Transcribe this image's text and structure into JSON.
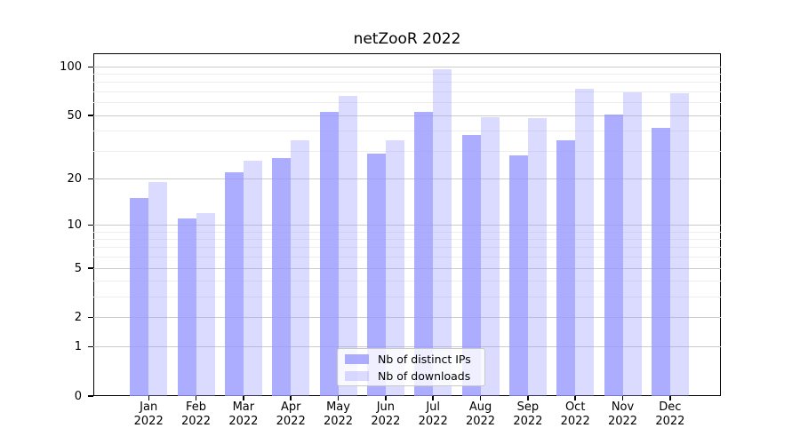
{
  "title": "netZooR 2022",
  "chart_data": {
    "type": "bar",
    "title": "netZooR 2022",
    "categories": [
      "Jan",
      "Feb",
      "Mar",
      "Apr",
      "May",
      "Jun",
      "Jul",
      "Aug",
      "Sep",
      "Oct",
      "Nov",
      "Dec"
    ],
    "year_label": "2022",
    "series": [
      {
        "name": "Nb of distinct IPs",
        "color": "#9999ff",
        "alpha": 0.8,
        "values": [
          15,
          11,
          22,
          27,
          53,
          29,
          53,
          38,
          28,
          35,
          51,
          42
        ]
      },
      {
        "name": "Nb of downloads",
        "color": "#9999ff",
        "alpha": 0.35,
        "values": [
          19,
          12,
          26,
          35,
          66,
          35,
          97,
          49,
          48,
          73,
          70,
          69
        ]
      }
    ],
    "y_scale": "log10(value+1)",
    "y_tick_values": [
      0,
      1,
      2,
      5,
      10,
      20,
      50,
      100
    ],
    "y_minor_gridlines": [
      3,
      4,
      6,
      7,
      8,
      9,
      30,
      40,
      60,
      70,
      80,
      90
    ],
    "ylim": [
      0,
      121
    ],
    "xlabel": "",
    "ylabel": "",
    "grid": true,
    "legend_position": "bottom-center-inside"
  },
  "colors": {
    "bar_base": "#9999ff",
    "major_grid": "#cccccc",
    "minor_grid": "#ededed",
    "axis": "#000000",
    "background": "#ffffff",
    "legend_border": "#c8c8c8"
  }
}
